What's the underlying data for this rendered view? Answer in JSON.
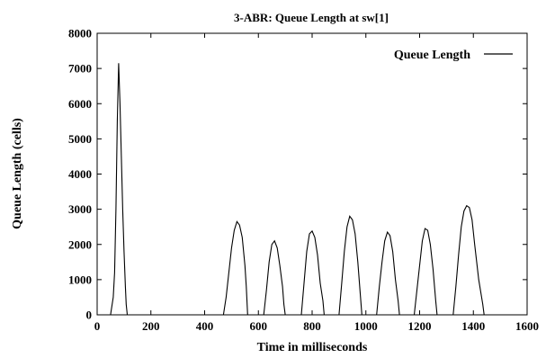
{
  "chart_data": {
    "type": "line",
    "title": "3-ABR: Queue Length at sw[1]",
    "xlabel": "Time in milliseconds",
    "ylabel": "Queue Length (cells)",
    "xlim": [
      0,
      1600
    ],
    "ylim": [
      0,
      8000
    ],
    "xticks": [
      0,
      200,
      400,
      600,
      800,
      1000,
      1200,
      1400,
      1600
    ],
    "yticks": [
      0,
      1000,
      2000,
      3000,
      4000,
      5000,
      6000,
      7000,
      8000
    ],
    "grid": false,
    "legend_position": "top-right",
    "series": [
      {
        "name": "Queue Length",
        "color": "#000000",
        "x": [
          0,
          30,
          50,
          60,
          65,
          70,
          75,
          80,
          85,
          90,
          95,
          100,
          105,
          108,
          112,
          470,
          480,
          490,
          500,
          510,
          520,
          530,
          540,
          550,
          555,
          560,
          620,
          630,
          640,
          650,
          660,
          670,
          680,
          690,
          695,
          700,
          760,
          770,
          780,
          790,
          800,
          810,
          820,
          830,
          840,
          845,
          900,
          910,
          920,
          930,
          940,
          950,
          960,
          970,
          980,
          985,
          1040,
          1050,
          1060,
          1070,
          1080,
          1090,
          1100,
          1110,
          1120,
          1125,
          1180,
          1190,
          1200,
          1210,
          1220,
          1230,
          1240,
          1250,
          1260,
          1265,
          1325,
          1335,
          1345,
          1355,
          1365,
          1375,
          1385,
          1395,
          1405,
          1420,
          1435,
          1440,
          1600
        ],
        "y": [
          0,
          0,
          0,
          500,
          1200,
          3000,
          5500,
          7150,
          6000,
          4500,
          3000,
          1800,
          800,
          300,
          0,
          0,
          500,
          1200,
          1900,
          2400,
          2650,
          2550,
          2200,
          1400,
          800,
          0,
          0,
          700,
          1500,
          2000,
          2100,
          1900,
          1400,
          800,
          300,
          0,
          0,
          900,
          1800,
          2300,
          2380,
          2200,
          1700,
          900,
          400,
          0,
          0,
          900,
          1800,
          2500,
          2800,
          2700,
          2300,
          1500,
          500,
          0,
          0,
          800,
          1500,
          2100,
          2350,
          2250,
          1800,
          1000,
          400,
          0,
          0,
          700,
          1400,
          2100,
          2450,
          2400,
          2000,
          1300,
          400,
          0,
          0,
          800,
          1700,
          2500,
          2950,
          3100,
          3050,
          2700,
          2000,
          1000,
          300,
          0,
          0
        ]
      }
    ]
  }
}
